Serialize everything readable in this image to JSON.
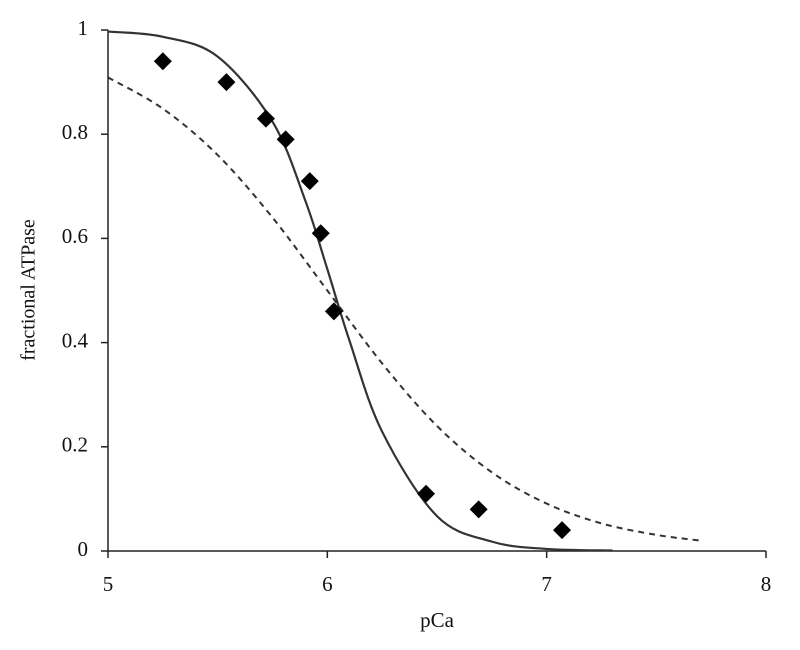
{
  "chart_data": {
    "type": "scatter",
    "x_label": "pCa",
    "y_label": "fractional ATPase",
    "xlim": [
      5,
      8
    ],
    "xticks": [
      5,
      6,
      7,
      8
    ],
    "ylim": [
      0,
      1
    ],
    "yticks": [
      0,
      0.2,
      0.4,
      0.6,
      0.8,
      1
    ],
    "grid": false,
    "series": [
      {
        "type": "scatter",
        "marker": "diamond",
        "color": "#000000",
        "x": [
          5.25,
          5.54,
          5.72,
          5.81,
          5.92,
          5.97,
          6.03,
          6.45,
          6.69,
          7.07
        ],
        "values": [
          0.94,
          0.9,
          0.83,
          0.79,
          0.71,
          0.61,
          0.46,
          0.11,
          0.08,
          0.04
        ]
      },
      {
        "type": "line",
        "dash": false,
        "color": "#333333",
        "x": [
          5.0,
          5.25,
          5.5,
          5.75,
          5.9,
          6.0,
          6.1,
          6.25,
          6.5,
          6.75,
          7.0,
          7.3
        ],
        "values": [
          0.997,
          0.987,
          0.949,
          0.824,
          0.672,
          0.541,
          0.405,
          0.229,
          0.067,
          0.018,
          0.004,
          0.001
        ]
      },
      {
        "type": "line",
        "dash": true,
        "color": "#333333",
        "x": [
          5.0,
          5.25,
          5.5,
          5.75,
          6.0,
          6.25,
          6.5,
          6.75,
          7.0,
          7.25,
          7.5,
          7.7
        ],
        "values": [
          0.909,
          0.849,
          0.76,
          0.64,
          0.5,
          0.36,
          0.24,
          0.151,
          0.091,
          0.053,
          0.031,
          0.02
        ]
      }
    ]
  }
}
